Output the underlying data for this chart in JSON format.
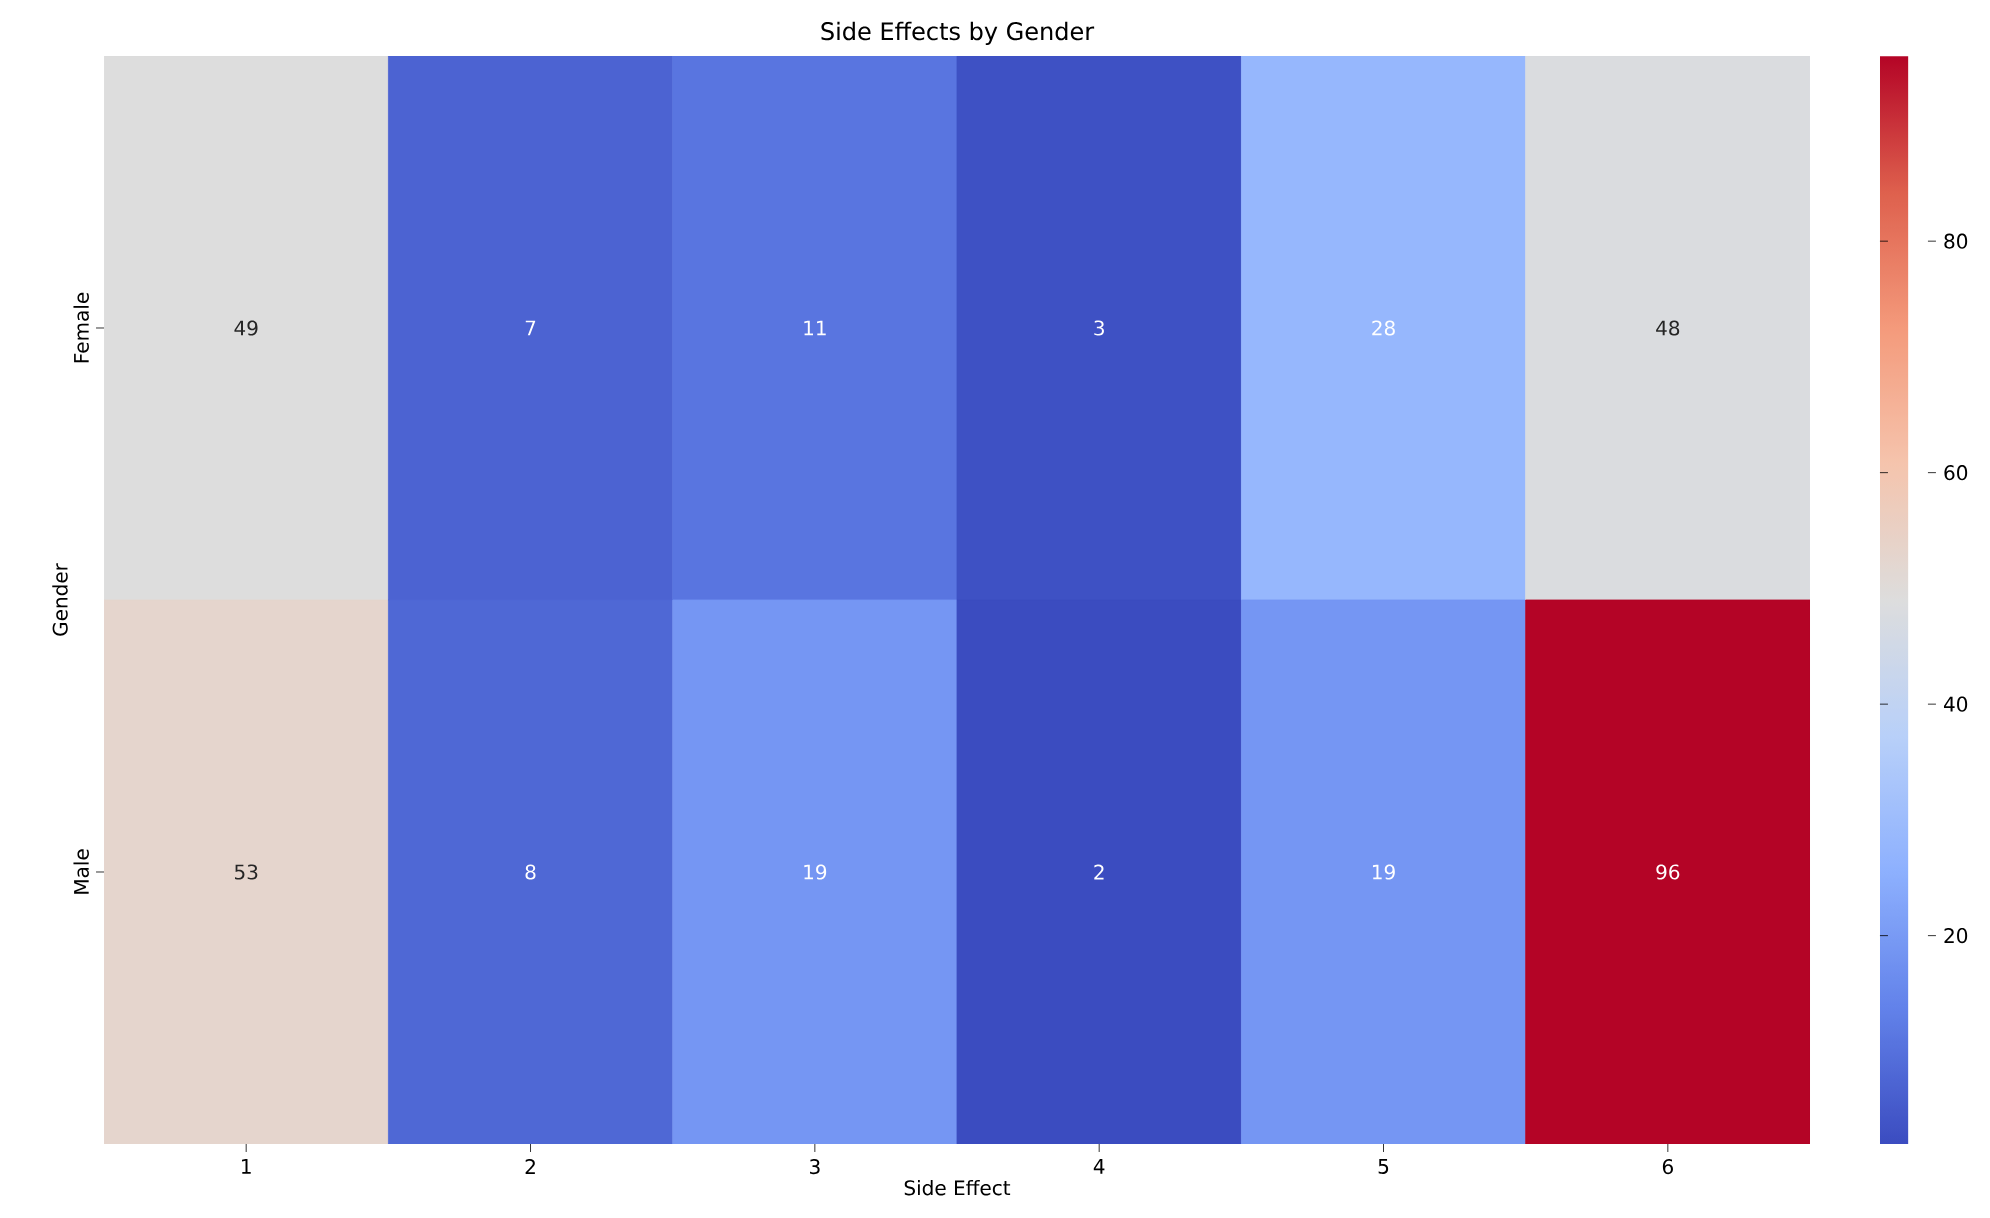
{
  "chart_data": {
    "type": "heatmap",
    "title": "Side Effects by Gender",
    "xlabel": "Side Effect",
    "ylabel": "Gender",
    "categories": [
      "1",
      "2",
      "3",
      "4",
      "5",
      "6"
    ],
    "y_categories": [
      "Female",
      "Male"
    ],
    "cells": [
      [
        49,
        7,
        11,
        3,
        28,
        48
      ],
      [
        53,
        8,
        19,
        2,
        19,
        96
      ]
    ],
    "data_labels": true,
    "clim": [
      2,
      96
    ],
    "cticks": [
      20,
      40,
      60,
      80
    ]
  }
}
